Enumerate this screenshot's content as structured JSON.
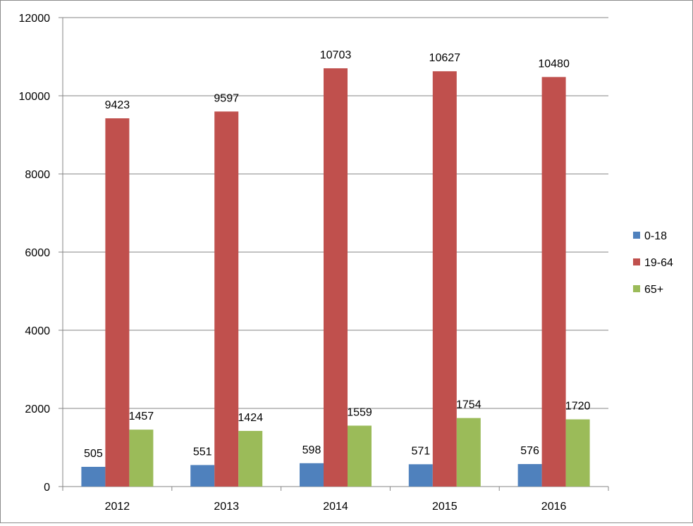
{
  "chart_data": {
    "type": "bar",
    "title": "",
    "xlabel": "",
    "ylabel": "",
    "categories": [
      "2012",
      "2013",
      "2014",
      "2015",
      "2016"
    ],
    "ylim": [
      0,
      12000
    ],
    "yticks": [
      0,
      2000,
      4000,
      6000,
      8000,
      10000,
      12000
    ],
    "grid": true,
    "legend_position": "right",
    "data_labels": true,
    "series": [
      {
        "name": "0-18",
        "color": "#4f81bd",
        "values": [
          505,
          551,
          598,
          571,
          576
        ]
      },
      {
        "name": "19-64",
        "color": "#c0504d",
        "values": [
          9423,
          9597,
          10703,
          10627,
          10480
        ]
      },
      {
        "name": "65+",
        "color": "#9bbb59",
        "values": [
          1457,
          1424,
          1559,
          1754,
          1720
        ]
      }
    ]
  }
}
